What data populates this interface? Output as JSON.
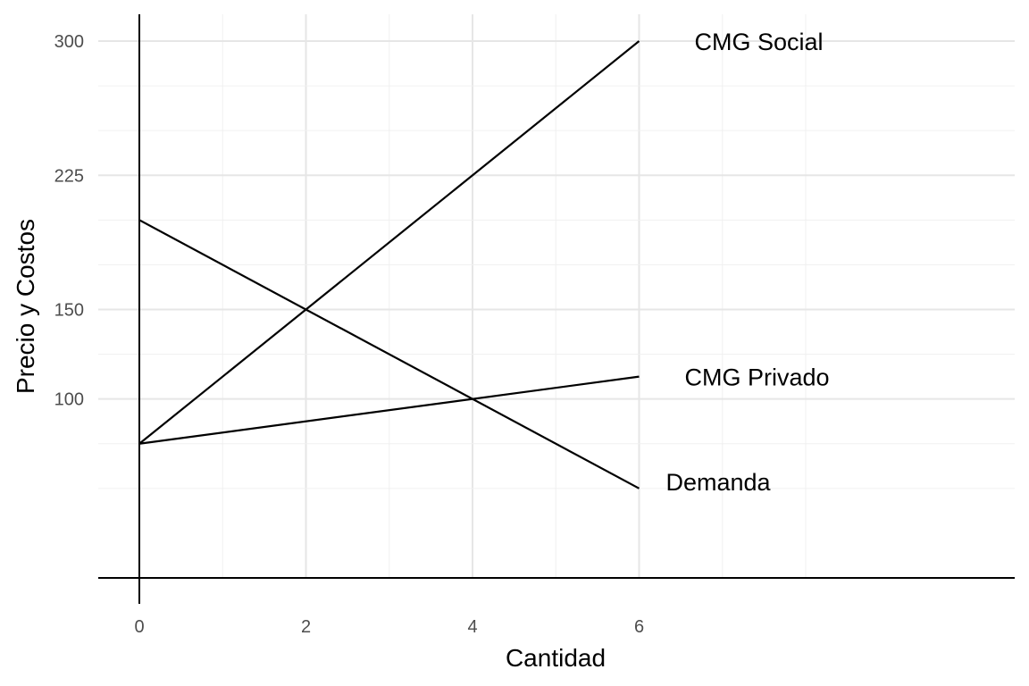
{
  "chart_data": {
    "type": "line",
    "xlabel": "Cantidad",
    "ylabel": "Precio y Costos",
    "xlim": [
      -0.5,
      10.5
    ],
    "ylim": [
      0,
      315
    ],
    "x_ticks": [
      0,
      2,
      4,
      6
    ],
    "y_ticks": [
      100,
      150,
      225,
      300
    ],
    "x_minor_grid": [
      1,
      3,
      5,
      7,
      8
    ],
    "y_minor_grid": [
      50,
      75,
      125,
      175,
      200,
      250,
      275
    ],
    "grid": true,
    "series": [
      {
        "name": "Demanda",
        "x": [
          0,
          6
        ],
        "y": [
          200,
          50
        ]
      },
      {
        "name": "CMG Privado",
        "x": [
          0,
          6
        ],
        "y": [
          75,
          112.5
        ]
      },
      {
        "name": "CMG Social",
        "x": [
          0,
          6
        ],
        "y": [
          75,
          300
        ]
      }
    ]
  }
}
